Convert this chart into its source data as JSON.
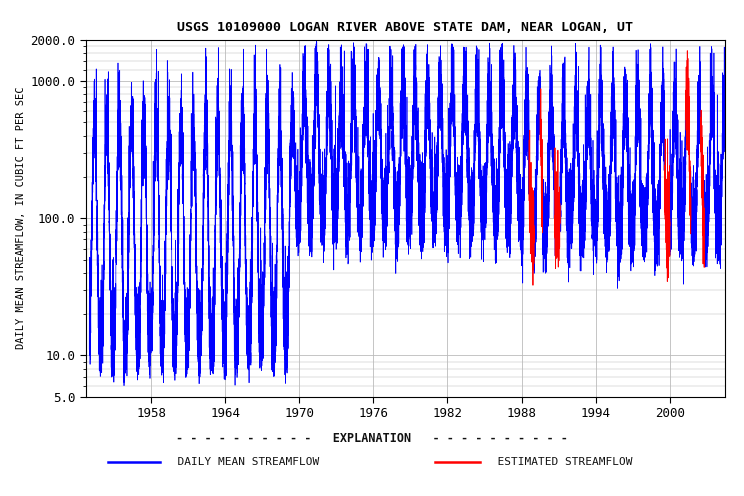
{
  "title": "USGS 10109000 LOGAN RIVER ABOVE STATE DAM, NEAR LOGAN, UT",
  "ylabel": "DAILY MEAN STREAMFLOW, IN CUBIC FT PER SEC",
  "xlim_start": 1952.7,
  "xlim_end": 2004.5,
  "ylim_bottom": 5.0,
  "ylim_top": 2000.0,
  "xticks": [
    1958,
    1964,
    1970,
    1976,
    1982,
    1988,
    1994,
    2000
  ],
  "yticks": [
    5.0,
    10.0,
    100.0,
    1000.0,
    2000.0
  ],
  "ytick_labels": [
    "5.0",
    "10.0",
    "100.0",
    "1000.0",
    "2000.0"
  ],
  "blue_color": "#0000FF",
  "red_color": "#FF0000",
  "bg_color": "#FFFFFF",
  "grid_color": "#BBBBBB",
  "title_fontsize": 9.5,
  "label_fontsize": 7.5,
  "tick_fontsize": 9,
  "legend_title": "EXPLANATION",
  "legend_label_blue": "DAILY MEAN STREAMFLOW",
  "legend_label_red": "ESTIMATED STREAMFLOW",
  "data_start_year": 1953,
  "data_end_year": 2004
}
